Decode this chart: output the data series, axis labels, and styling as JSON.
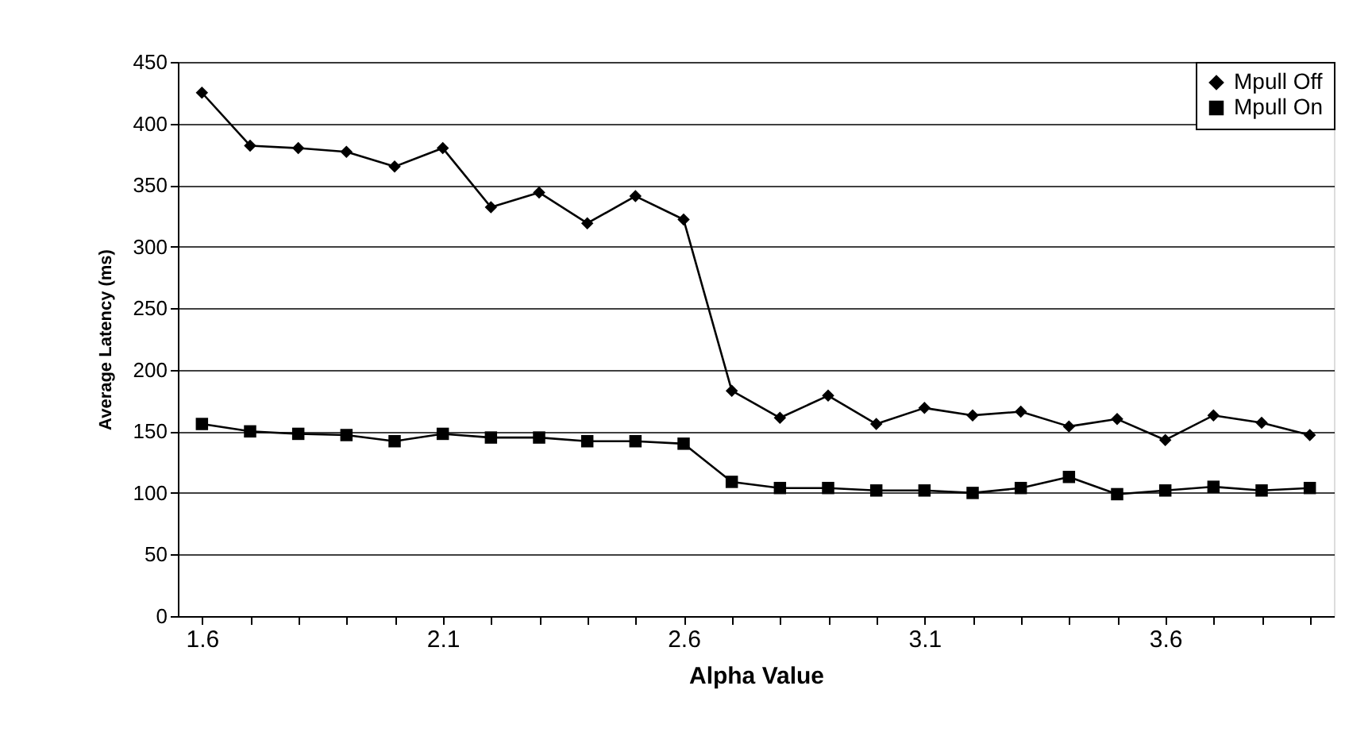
{
  "chart_data": {
    "type": "line",
    "xlabel": "Alpha Value",
    "ylabel": "Average Latency (ms)",
    "categories": [
      "1.6",
      null,
      null,
      null,
      null,
      "2.1",
      null,
      null,
      null,
      null,
      "2.6",
      null,
      null,
      null,
      null,
      "3.1",
      null,
      null,
      null,
      null,
      "3.6",
      null,
      null,
      null
    ],
    "series": [
      {
        "name": "Mpull Off",
        "color": "#000000",
        "marker": "diamond",
        "values": [
          425,
          382,
          380,
          377,
          365,
          380,
          332,
          344,
          319,
          341,
          322,
          183,
          161,
          179,
          156,
          169,
          163,
          166,
          154,
          160,
          143,
          163,
          157,
          147
        ]
      },
      {
        "name": "Mpull On",
        "color": "#000000",
        "marker": "square",
        "values": [
          156,
          150,
          148,
          147,
          142,
          148,
          145,
          145,
          142,
          142,
          140,
          109,
          104,
          104,
          102,
          102,
          100,
          104,
          113,
          99,
          102,
          105,
          102,
          104
        ]
      }
    ],
    "ylim": [
      0,
      450
    ],
    "yticks": [
      0,
      50,
      100,
      150,
      200,
      250,
      300,
      350,
      400,
      450
    ],
    "grid": "y",
    "legend": "top right",
    "line_style": "solid"
  }
}
